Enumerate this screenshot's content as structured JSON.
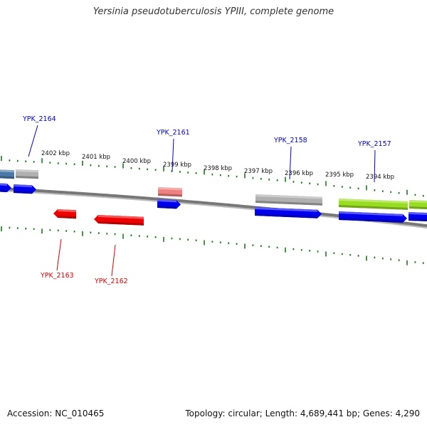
{
  "title": "Yersinia pseudotuberculosis YPIII, complete genome",
  "footer": {
    "accession": "Accession: NC_010465",
    "summary": "Topology: circular; Length: 4,689,441 bp; Genes: 4,290"
  },
  "colors": {
    "forward_label": "#0000cc",
    "reverse_label": "#dd0000",
    "tick": "#1a7a1a",
    "backbone": "#777777",
    "gene_blue": "#0000ee",
    "gene_red": "#ee0000",
    "gene_gray": "#b0b0b0",
    "gene_pink": "#ee8080",
    "gene_green": "#99dd22",
    "gene_steel": "#4a7aa8"
  },
  "ruler_labels": [
    {
      "text": "2402 kbp"
    },
    {
      "text": "2401 kbp"
    },
    {
      "text": "2400 kbp"
    },
    {
      "text": "2399 kbp"
    },
    {
      "text": "2398 kbp"
    },
    {
      "text": "2397 kbp"
    },
    {
      "text": "2396 kbp"
    },
    {
      "text": "2395 kbp"
    },
    {
      "text": "2394 kbp"
    }
  ],
  "gene_labels": [
    {
      "text": "YPK_2164",
      "strand": "forward"
    },
    {
      "text": "YPK_2161",
      "strand": "forward"
    },
    {
      "text": "YPK_2158",
      "strand": "forward"
    },
    {
      "text": "YPK_2157",
      "strand": "forward"
    },
    {
      "text": "YPK_2163",
      "strand": "reverse"
    },
    {
      "text": "YPK_2162",
      "strand": "reverse"
    }
  ]
}
